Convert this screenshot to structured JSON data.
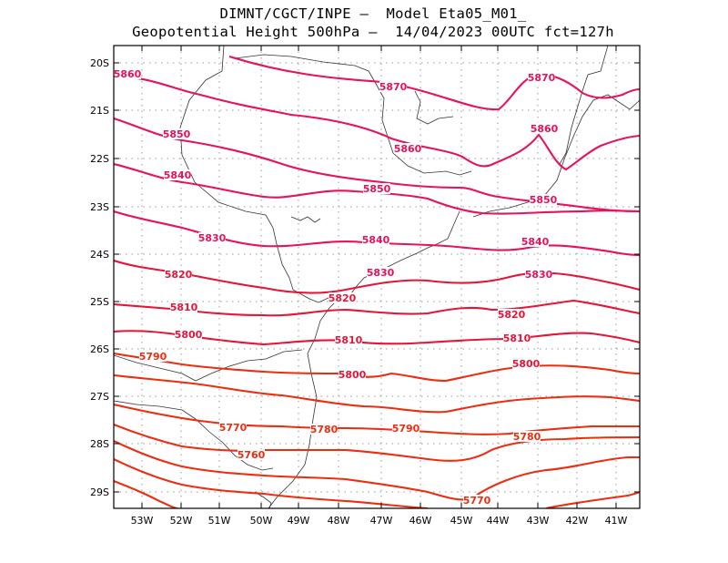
{
  "title_line1": "DIMNT/CGCT/INPE –  Model Eta05_M01_",
  "title_line2": "Geopotential Height 500hPa –  14/04/2023 00UTC fct=127h",
  "lat_labels": [
    "20S",
    "21S",
    "22S",
    "23S",
    "24S",
    "25S",
    "26S",
    "27S",
    "28S",
    "29S"
  ],
  "lon_labels": [
    "53W",
    "52W",
    "51W",
    "50W",
    "49W",
    "48W",
    "47W",
    "46W",
    "45W",
    "44W",
    "43W",
    "42W",
    "41W"
  ],
  "contour_labels": [
    {
      "id": "5870a",
      "text": "5870"
    },
    {
      "id": "5870b",
      "text": "5870"
    },
    {
      "id": "5860a",
      "text": "5860"
    },
    {
      "id": "5860b",
      "text": "5860"
    },
    {
      "id": "5860c",
      "text": "5860"
    },
    {
      "id": "5850a",
      "text": "5850"
    },
    {
      "id": "5850b",
      "text": "5850"
    },
    {
      "id": "5850c",
      "text": "5850"
    },
    {
      "id": "5840a",
      "text": "5840"
    },
    {
      "id": "5840b",
      "text": "5840"
    },
    {
      "id": "5840c",
      "text": "5840"
    },
    {
      "id": "5830a",
      "text": "5830"
    },
    {
      "id": "5830b",
      "text": "5830"
    },
    {
      "id": "5830c",
      "text": "5830"
    },
    {
      "id": "5820a",
      "text": "5820"
    },
    {
      "id": "5820b",
      "text": "5820"
    },
    {
      "id": "5820c",
      "text": "5820"
    },
    {
      "id": "5810a",
      "text": "5810"
    },
    {
      "id": "5810b",
      "text": "5810"
    },
    {
      "id": "5810c",
      "text": "5810"
    },
    {
      "id": "5800a",
      "text": "5800"
    },
    {
      "id": "5800b",
      "text": "5800"
    },
    {
      "id": "5800c",
      "text": "5800"
    },
    {
      "id": "5790a",
      "text": "5790"
    },
    {
      "id": "5790b",
      "text": "5790"
    },
    {
      "id": "5780a",
      "text": "5780"
    },
    {
      "id": "5780b",
      "text": "5780"
    },
    {
      "id": "5770a",
      "text": "5770"
    },
    {
      "id": "5770b",
      "text": "5770"
    },
    {
      "id": "5760a",
      "text": "5760"
    }
  ],
  "colors": {
    "high": "#e8125a",
    "mid": "#e81438",
    "low": "#ee2d10",
    "coast": "#333333",
    "grid": "#9a9a9a"
  }
}
